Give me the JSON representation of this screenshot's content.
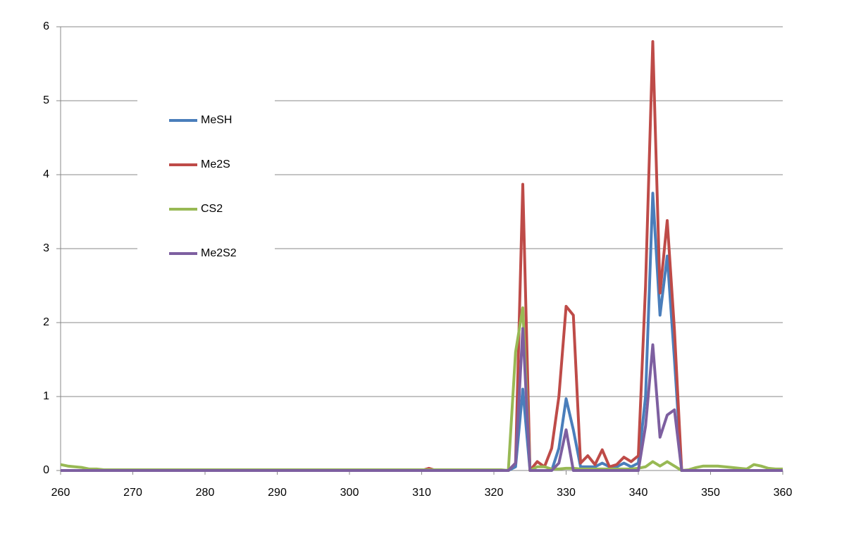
{
  "chart_data": {
    "type": "line",
    "x": [
      260,
      261,
      262,
      263,
      264,
      265,
      266,
      267,
      268,
      269,
      270,
      271,
      272,
      273,
      274,
      275,
      276,
      277,
      278,
      279,
      280,
      281,
      282,
      283,
      284,
      285,
      286,
      287,
      288,
      289,
      290,
      291,
      292,
      293,
      294,
      295,
      296,
      297,
      298,
      299,
      300,
      301,
      302,
      303,
      304,
      305,
      306,
      307,
      308,
      309,
      310,
      311,
      312,
      313,
      314,
      315,
      316,
      317,
      318,
      319,
      320,
      321,
      322,
      323,
      324,
      325,
      326,
      327,
      328,
      329,
      330,
      331,
      332,
      333,
      334,
      335,
      336,
      337,
      338,
      339,
      340,
      341,
      342,
      343,
      344,
      345,
      346,
      347,
      348,
      349,
      350,
      351,
      352,
      353,
      354,
      355,
      356,
      357,
      358,
      359,
      360
    ],
    "series": [
      {
        "name": "MeSH",
        "color": "#4a7ebb",
        "values": [
          0,
          0,
          0,
          0,
          0,
          0,
          0,
          0,
          0,
          0,
          0,
          0,
          0,
          0,
          0,
          0,
          0,
          0,
          0,
          0,
          0,
          0,
          0,
          0,
          0,
          0,
          0,
          0,
          0,
          0,
          0,
          0,
          0,
          0,
          0,
          0,
          0,
          0,
          0,
          0,
          0,
          0,
          0,
          0,
          0,
          0,
          0,
          0,
          0,
          0,
          0,
          0,
          0,
          0,
          0,
          0,
          0,
          0,
          0,
          0,
          0,
          0,
          0,
          0.05,
          1.1,
          0,
          0,
          0,
          0,
          0.3,
          0.97,
          0.55,
          0.05,
          0.05,
          0.05,
          0.1,
          0.05,
          0.05,
          0.1,
          0.05,
          0.1,
          1.0,
          3.75,
          2.1,
          2.9,
          1.5,
          0,
          0,
          0,
          0,
          0,
          0,
          0,
          0,
          0,
          0,
          0,
          0,
          0,
          0,
          0
        ]
      },
      {
        "name": "Me2S",
        "color": "#be4b48",
        "values": [
          0,
          0,
          0,
          0,
          0,
          0,
          0,
          0,
          0,
          0,
          0,
          0,
          0,
          0,
          0,
          0,
          0,
          0,
          0,
          0,
          0,
          0,
          0,
          0,
          0,
          0,
          0,
          0,
          0,
          0,
          0,
          0,
          0,
          0,
          0,
          0,
          0,
          0,
          0,
          0,
          0,
          0,
          0,
          0,
          0,
          0,
          0,
          0,
          0,
          0,
          0,
          0.03,
          0,
          0,
          0,
          0,
          0,
          0,
          0,
          0,
          0,
          0,
          0,
          0.1,
          3.87,
          0,
          0.12,
          0.05,
          0.3,
          1.0,
          2.22,
          2.1,
          0.1,
          0.2,
          0.08,
          0.28,
          0.05,
          0.08,
          0.18,
          0.12,
          0.2,
          2.5,
          5.8,
          2.4,
          3.38,
          1.9,
          0,
          0,
          0,
          0,
          0,
          0,
          0,
          0,
          0,
          0,
          0,
          0,
          0,
          0,
          0
        ]
      },
      {
        "name": "CS2",
        "color": "#98b954",
        "values": [
          0.08,
          0.06,
          0.05,
          0.04,
          0.02,
          0.02,
          0.01,
          0.01,
          0.01,
          0.01,
          0.01,
          0.01,
          0.01,
          0.01,
          0.01,
          0.01,
          0.01,
          0.01,
          0.01,
          0.01,
          0.01,
          0.01,
          0.01,
          0.01,
          0.01,
          0.01,
          0.01,
          0.01,
          0.01,
          0.01,
          0.01,
          0.01,
          0.01,
          0.01,
          0.01,
          0.01,
          0.01,
          0.01,
          0.01,
          0.01,
          0.01,
          0.01,
          0.01,
          0.01,
          0.01,
          0.01,
          0.01,
          0.01,
          0.01,
          0.01,
          0.01,
          0.01,
          0.01,
          0.01,
          0.01,
          0.01,
          0.01,
          0.01,
          0.01,
          0.01,
          0.01,
          0.01,
          0,
          1.6,
          2.2,
          0,
          0.05,
          0.05,
          0.02,
          0.02,
          0.03,
          0.03,
          0.02,
          0.02,
          0.02,
          0.02,
          0.02,
          0.02,
          0.02,
          0.02,
          0.03,
          0.05,
          0.12,
          0.06,
          0.12,
          0.06,
          0,
          0.01,
          0.04,
          0.06,
          0.06,
          0.06,
          0.05,
          0.04,
          0.03,
          0.02,
          0.08,
          0.06,
          0.03,
          0.02,
          0.02
        ]
      },
      {
        "name": "Me2S2",
        "color": "#7d5fa0",
        "values": [
          0,
          0,
          0,
          0,
          0,
          0,
          0,
          0,
          0,
          0,
          0,
          0,
          0,
          0,
          0,
          0,
          0,
          0,
          0,
          0,
          0,
          0,
          0,
          0,
          0,
          0,
          0,
          0,
          0,
          0,
          0,
          0,
          0,
          0,
          0,
          0,
          0,
          0,
          0,
          0,
          0,
          0,
          0,
          0,
          0,
          0,
          0,
          0,
          0,
          0,
          0,
          0,
          0,
          0,
          0,
          0,
          0,
          0,
          0,
          0,
          0,
          0,
          0,
          0.1,
          1.92,
          0,
          0,
          0,
          0,
          0.1,
          0.55,
          0,
          0,
          0,
          0,
          0,
          0,
          0,
          0,
          0,
          0,
          0.6,
          1.7,
          0.45,
          0.75,
          0.82,
          0,
          0,
          0,
          0,
          0,
          0,
          0,
          0,
          0,
          0,
          0,
          0,
          0,
          0,
          0
        ]
      }
    ],
    "xlim": [
      260,
      360
    ],
    "xticks": [
      260,
      270,
      280,
      290,
      300,
      310,
      320,
      330,
      340,
      350,
      360
    ],
    "ylim": [
      0,
      6
    ],
    "yticks": [
      0,
      1,
      2,
      3,
      4,
      5,
      6
    ],
    "grid": true,
    "legend": "upper-left"
  }
}
